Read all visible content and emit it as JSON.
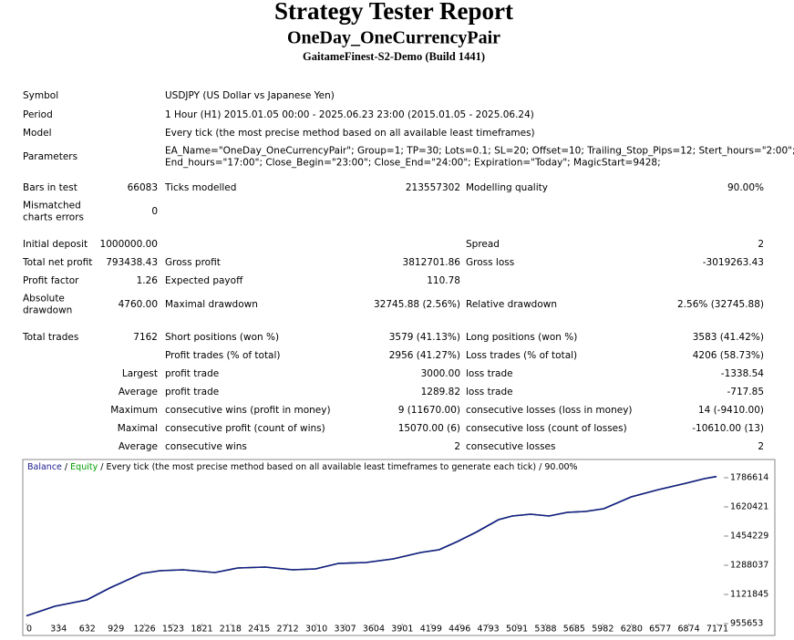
{
  "header": {
    "title": "Strategy Tester Report",
    "subtitle": "OneDay_OneCurrencyPair",
    "server": "GaitameFinest-S2-Demo (Build 1441)"
  },
  "info": [
    {
      "label": "Symbol",
      "value": [
        "USDJPY (US Dollar vs Japanese Yen)"
      ]
    },
    {
      "label": "Period",
      "value": [
        "1 Hour (H1) 2015.01.05 00:00 - 2025.06.23 23:00 (2015.01.05 - 2025.06.24)"
      ]
    },
    {
      "label": "Model",
      "value": [
        "Every tick (the most precise method based on all available least timeframes)"
      ]
    },
    {
      "label": "Parameters",
      "value": [
        "EA_Name=\"OneDay_OneCurrencyPair\"; Group=1; TP=30; Lots=0.1; SL=20; Offset=10; Trailing_Stop_Pips=12; Stert_hours=\"2:00\";",
        "End_hours=\"17:00\"; Close_Begin=\"23:00\"; Close_End=\"24:00\"; Expiration=\"Today\"; MagicStart=9428;"
      ]
    }
  ],
  "stats": [
    [
      [
        "Bars in test"
      ],
      "66083",
      "Ticks modelled",
      "213557302",
      "Modelling quality",
      "90.00%"
    ],
    [
      [
        "Mismatched",
        "charts errors"
      ],
      "0",
      null,
      null,
      null,
      null
    ],
    [
      [
        "Initial deposit"
      ],
      "1000000.00",
      null,
      null,
      "Spread",
      "2"
    ],
    [
      [
        "Total net profit"
      ],
      "793438.43",
      "Gross profit",
      "3812701.86",
      "Gross loss",
      "-3019263.43"
    ],
    [
      [
        "Profit factor"
      ],
      "1.26",
      "Expected payoff",
      "110.78",
      null,
      null
    ],
    [
      [
        "Absolute",
        "drawdown"
      ],
      "4760.00",
      "Maximal drawdown",
      "32745.88 (2.56%)",
      "Relative drawdown",
      "2.56% (32745.88)"
    ],
    [
      [
        "Total trades"
      ],
      "7162",
      "Short positions (won %)",
      "3579 (41.13%)",
      "Long positions (won %)",
      "3583 (41.42%)"
    ],
    [
      null,
      null,
      "Profit trades (% of total)",
      "2956 (41.27%)",
      "Loss trades (% of total)",
      "4206 (58.73%)"
    ],
    [
      null,
      "Largest",
      "profit trade",
      "3000.00",
      "loss trade",
      "-1338.54"
    ],
    [
      null,
      "Average",
      "profit trade",
      "1289.82",
      "loss trade",
      "-717.85"
    ],
    [
      null,
      "Maximum",
      "consecutive wins (profit in money)",
      "9 (11670.00)",
      "consecutive losses (loss in money)",
      "14 (-9410.00)"
    ],
    [
      null,
      "Maximal",
      "consecutive profit (count of wins)",
      "15070.00 (6)",
      "consecutive loss (count of losses)",
      "-10610.00 (13)"
    ],
    [
      null,
      "Average",
      "consecutive wins",
      "2",
      "consecutive losses",
      "2"
    ]
  ],
  "chart_data": {
    "type": "line",
    "legend_separator": "/",
    "subtitle": "/ Every tick (the most precise method based on all available least timeframes to generate each tick) / 90.00%",
    "x": [
      0,
      294,
      627,
      864,
      1197,
      1387,
      1624,
      1956,
      2194,
      2479,
      2764,
      3001,
      3238,
      3523,
      3808,
      4093,
      4283,
      4473,
      4663,
      4900,
      5043,
      5233,
      5423,
      5613,
      5802,
      5992,
      6277,
      6562,
      6847,
      7037,
      7162
    ],
    "series": [
      {
        "name": "Equity",
        "color": "#00a000",
        "values": [
          1000000,
          1054330,
          1090684,
          1158200,
          1241296,
          1256876,
          1262070,
          1246489,
          1272457,
          1277650,
          1262070,
          1267263,
          1298424,
          1303618,
          1324392,
          1360746,
          1376327,
          1423068,
          1475003,
          1547712,
          1568486,
          1578873,
          1568486,
          1589260,
          1594454,
          1610034,
          1677550,
          1719098,
          1755452,
          1781420,
          1793438
        ]
      },
      {
        "name": "Balance",
        "color": "#1a1a8c",
        "values": [
          1000000,
          1054330,
          1090684,
          1158200,
          1241296,
          1256876,
          1262070,
          1246489,
          1272457,
          1277650,
          1262070,
          1267263,
          1298424,
          1303618,
          1324392,
          1360746,
          1376327,
          1423068,
          1475003,
          1547712,
          1568486,
          1578873,
          1568486,
          1589260,
          1594454,
          1610034,
          1677550,
          1719098,
          1755452,
          1781420,
          1793438
        ]
      }
    ],
    "xlim": [
      0,
      7266
    ],
    "xticks": [
      0,
      334,
      632,
      929,
      1226,
      1523,
      1821,
      2118,
      2415,
      2712,
      3010,
      3307,
      3604,
      3901,
      4199,
      4496,
      4793,
      5091,
      5388,
      5685,
      5982,
      6280,
      6577,
      6874,
      7171
    ],
    "ylim": [
      955653,
      1874900
    ],
    "yticks": [
      955653,
      1121845,
      1288037,
      1454229,
      1620421,
      1786614
    ]
  }
}
